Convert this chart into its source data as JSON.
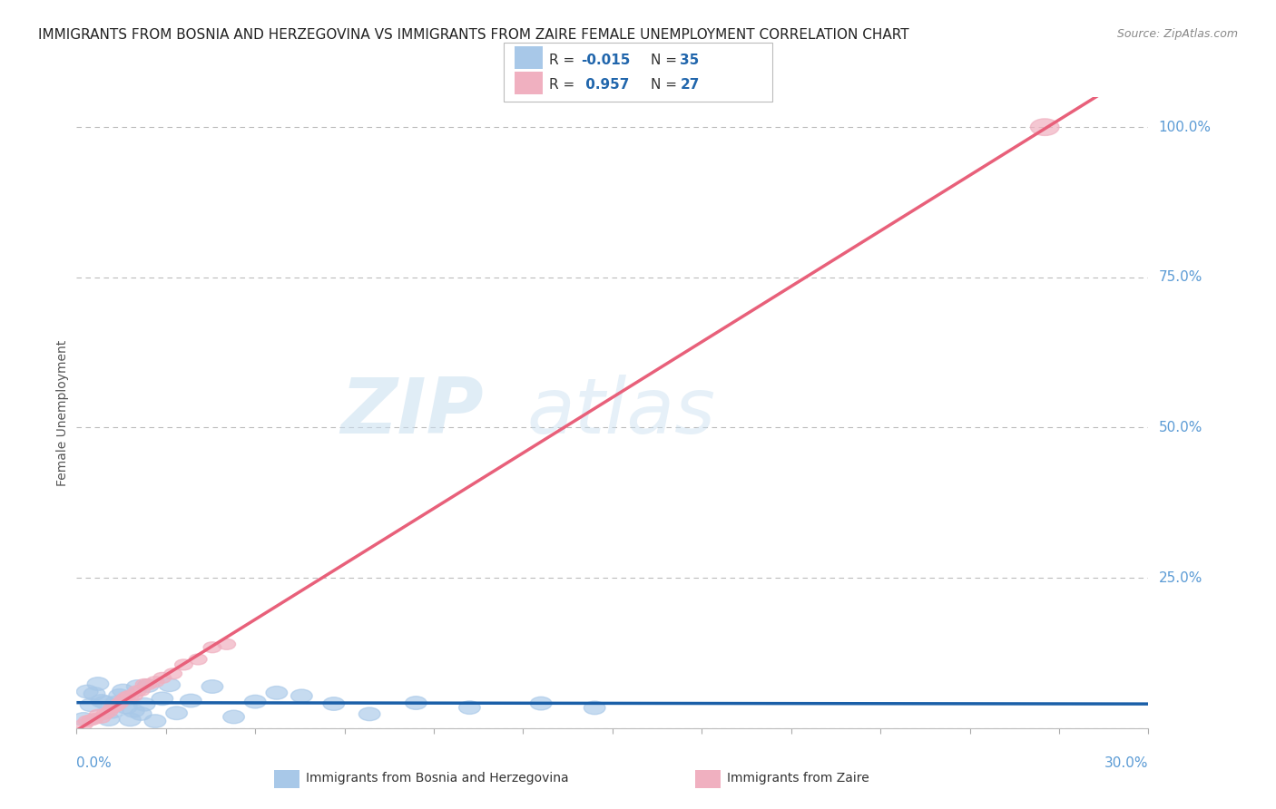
{
  "title": "IMMIGRANTS FROM BOSNIA AND HERZEGOVINA VS IMMIGRANTS FROM ZAIRE FEMALE UNEMPLOYMENT CORRELATION CHART",
  "source": "Source: ZipAtlas.com",
  "ylabel": "Female Unemployment",
  "watermark_zip": "ZIP",
  "watermark_atlas": "atlas",
  "legend_r1": "R = -0.015",
  "legend_n1": "N = 35",
  "legend_r2": "R =  0.957",
  "legend_n2": "N = 27",
  "series1_label": "Immigrants from Bosnia and Herzegovina",
  "series2_label": "Immigrants from Zaire",
  "series1_scatter_color": "#a8c8e8",
  "series2_scatter_color": "#f0b0c0",
  "series1_line_color": "#1a5fa8",
  "series2_line_color": "#e8607a",
  "series1_legend_color": "#a8c8e8",
  "series2_legend_color": "#f0b0c0",
  "background_color": "#ffffff",
  "grid_color": "#bbbbbb",
  "axis_tick_color": "#5b9bd5",
  "ylabel_color": "#555555",
  "title_color": "#222222",
  "source_color": "#888888",
  "ytick_positions": [
    0.0,
    0.25,
    0.5,
    0.75,
    1.0
  ],
  "ytick_labels": [
    "",
    "25.0%",
    "50.0%",
    "75.0%",
    "100.0%"
  ],
  "xlim": [
    0.0,
    0.3
  ],
  "ylim": [
    0.0,
    1.05
  ]
}
